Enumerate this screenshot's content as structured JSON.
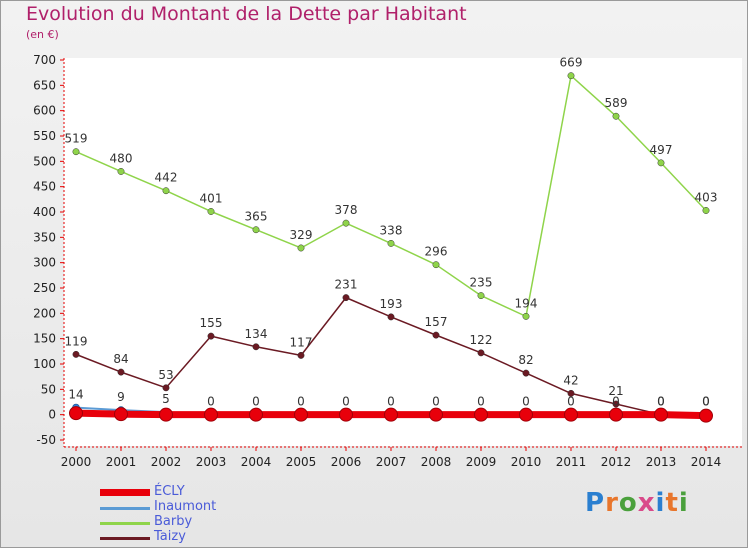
{
  "header": {
    "title": "Evolution du Montant de la Dette par Habitant",
    "subtitle": "(en €)"
  },
  "logo": {
    "text": "Proxiti",
    "letters": [
      "P",
      "r",
      "o",
      "x",
      "i",
      "t",
      "i"
    ],
    "colors": [
      "#2a7fd0",
      "#e8762c",
      "#4aa03c",
      "#d94a8a",
      "#2a7fd0",
      "#e8762c",
      "#4aa03c"
    ]
  },
  "chart_data": {
    "type": "line",
    "title": "Evolution du Montant de la Dette par Habitant",
    "subtitle": "(en €)",
    "x": [
      "2000",
      "2001",
      "2002",
      "2003",
      "2004",
      "2005",
      "2006",
      "2007",
      "2008",
      "2009",
      "2010",
      "2011",
      "2012",
      "2013",
      "2014"
    ],
    "ylim": [
      -50,
      700
    ],
    "yticks": [
      -50,
      0,
      50,
      100,
      150,
      200,
      250,
      300,
      350,
      400,
      450,
      500,
      550,
      600,
      650,
      700
    ],
    "grid": false,
    "legend_position": "bottom-left",
    "series": [
      {
        "name": "ÉCLY",
        "color": "#e8000b",
        "values": [
          3,
          1,
          0,
          0,
          0,
          0,
          0,
          0,
          0,
          0,
          0,
          0,
          0,
          0,
          -2
        ],
        "labels": [],
        "line_width": 7
      },
      {
        "name": "Inaumont",
        "color": "#5b9bd5",
        "values": [
          14,
          9,
          5,
          0,
          0,
          0,
          0,
          0,
          0,
          0,
          0,
          0,
          0,
          0,
          0
        ],
        "labels": [
          "14",
          "9",
          "5",
          "0",
          "0",
          "0",
          "0",
          "0",
          "0",
          "0",
          "0",
          "0",
          "0",
          "0",
          "0"
        ],
        "line_width": 2
      },
      {
        "name": "Barby",
        "color": "#8fd44a",
        "values": [
          519,
          480,
          442,
          401,
          365,
          329,
          378,
          338,
          296,
          235,
          194,
          669,
          589,
          497,
          403
        ],
        "labels": [
          "519",
          "480",
          "442",
          "401",
          "365",
          "329",
          "378",
          "338",
          "296",
          "235",
          "194",
          "669",
          "589",
          "497",
          "403"
        ],
        "line_width": 1.5
      },
      {
        "name": "Taizy",
        "color": "#6b1a23",
        "values": [
          119,
          84,
          53,
          155,
          134,
          117,
          231,
          193,
          157,
          122,
          82,
          42,
          21,
          0,
          0
        ],
        "labels": [
          "119",
          "84",
          "53",
          "155",
          "134",
          "117",
          "231",
          "193",
          "157",
          "122",
          "82",
          "42",
          "21",
          "0",
          "0"
        ],
        "line_width": 1.5
      }
    ]
  }
}
